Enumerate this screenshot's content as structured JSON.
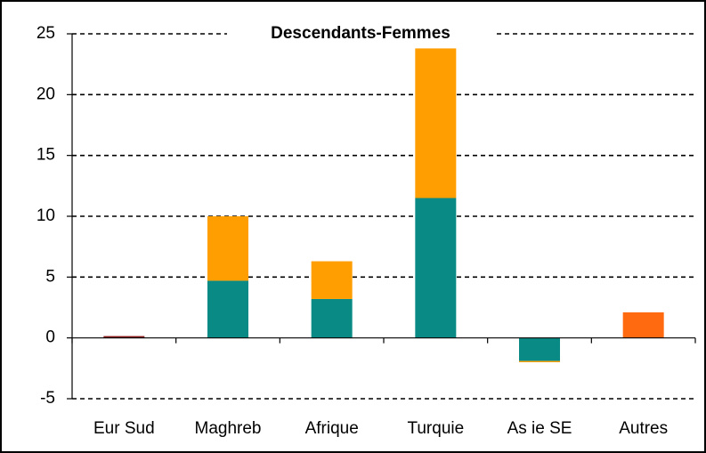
{
  "chart_data": {
    "type": "stacked_bar",
    "title": "Descendants-Femmes",
    "categories": [
      "Eur Sud",
      "Maghreb",
      "Afrique",
      "Turquie",
      "As ie SE",
      "Autres"
    ],
    "series": [
      {
        "color": "#0a8a85",
        "colors": [
          "#8b1a1a",
          "#0a8a85",
          "#0a8a85",
          "#0a8a85",
          "#0a8a85",
          "#ff6a10"
        ],
        "values": [
          0.15,
          4.7,
          3.2,
          11.5,
          -1.9,
          2.1
        ]
      },
      {
        "color": "#ff9e00",
        "values": [
          null,
          5.3,
          3.1,
          12.3,
          -0.1,
          null
        ]
      }
    ],
    "ylim": [
      -5,
      25
    ],
    "yticks": [
      -5,
      0,
      5,
      10,
      15,
      20,
      25
    ],
    "grid": true
  }
}
